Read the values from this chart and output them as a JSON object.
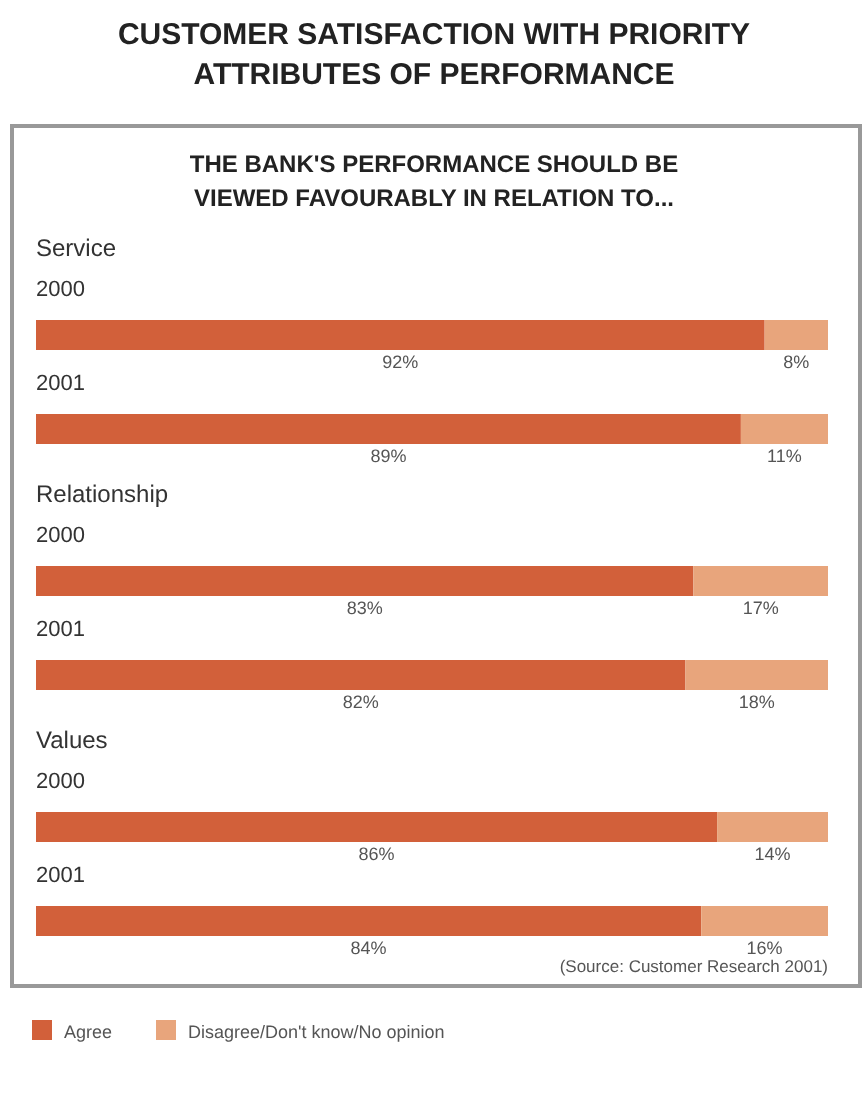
{
  "chart_data": {
    "type": "bar",
    "orientation": "horizontal",
    "stacked": true,
    "title": "CUSTOMER SATISFACTION WITH PRIORITY ATTRIBUTES OF PERFORMANCE",
    "subtitle": "THE BANK'S PERFORMANCE SHOULD BE VIEWED FAVOURABLY IN RELATION TO...",
    "categories": [
      "2000",
      "2001",
      "2000",
      "2001",
      "2000",
      "2001"
    ],
    "series": [
      {
        "name": "Agree",
        "color": "#d2603a",
        "values": [
          92,
          89,
          83,
          82,
          86,
          84
        ],
        "value_labels": [
          "92%",
          "89%",
          "83%",
          "82%",
          "86%",
          "84%"
        ]
      },
      {
        "name": "Disagree/Don't know/No opinion",
        "color": "#e8a57c",
        "values": [
          8,
          11,
          17,
          18,
          14,
          16
        ],
        "value_labels": [
          "8%",
          "11%",
          "17%",
          "18%",
          "14%",
          "16%"
        ]
      }
    ],
    "legend": "bottom",
    "annotations": [
      "Service",
      "Relationship",
      "Values",
      "(Source: Customer Research 2001)"
    ]
  }
}
